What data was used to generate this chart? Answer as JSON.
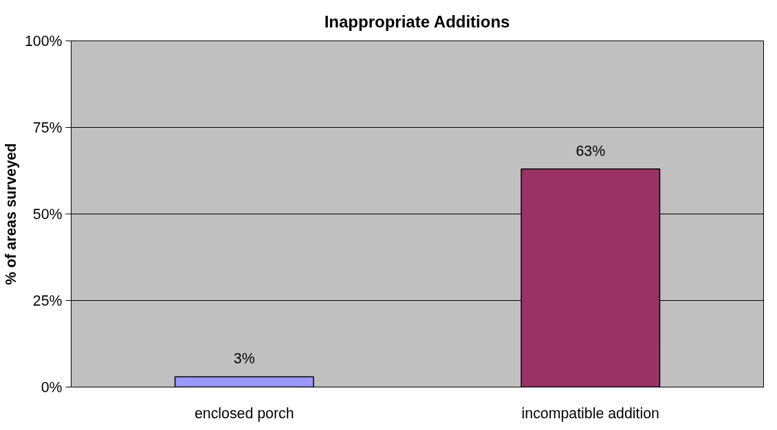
{
  "chart_data": {
    "type": "bar",
    "title": "Inappropriate Additions",
    "ylabel": "% of areas surveyed",
    "categories": [
      "enclosed porch",
      "incompatible addition"
    ],
    "values": [
      3,
      63
    ],
    "colors": [
      "#9999ff",
      "#993366"
    ],
    "ylim": [
      0,
      100
    ],
    "yticks": [
      {
        "value": 0,
        "label": "0%"
      },
      {
        "value": 25,
        "label": "25%"
      },
      {
        "value": 50,
        "label": "50%"
      },
      {
        "value": 75,
        "label": "75%"
      },
      {
        "value": 100,
        "label": "100%"
      }
    ],
    "value_labels": [
      "3%",
      "63%"
    ],
    "grid": "y"
  }
}
